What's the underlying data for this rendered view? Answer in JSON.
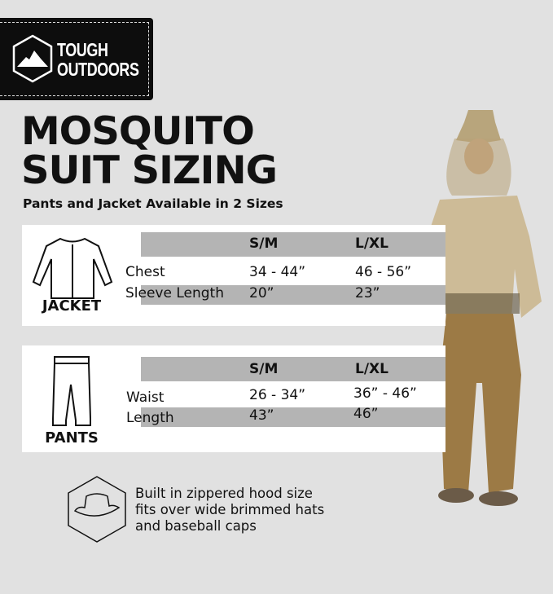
{
  "brand": {
    "logo_line1": "TOUGH",
    "logo_line2": "OUTDOORS"
  },
  "title_line1": "MOSQUITO",
  "title_line2": "SUIT SIZING",
  "subtitle": "Pants and Jacket Available in 2 Sizes",
  "jacket": {
    "label": "JACKET",
    "headers": [
      "S/M",
      "L/XL"
    ],
    "rows": [
      {
        "name": "Chest",
        "sm": "34 - 44”",
        "lxl": "46 - 56”"
      },
      {
        "name": "Sleeve Length",
        "sm": "20”",
        "lxl": "23”"
      }
    ]
  },
  "pants": {
    "label": "PANTS",
    "headers": [
      "S/M",
      "L/XL"
    ],
    "rows": [
      {
        "name": "Waist",
        "sm": "26 - 34”",
        "lxl": "36” - 46”"
      },
      {
        "name": "Length",
        "sm": "43”",
        "lxl": "46”"
      }
    ]
  },
  "feature": {
    "line1": "Built in zippered hood size",
    "line2": "fits over wide brimmed hats",
    "line3": "and baseball caps"
  },
  "colors": {
    "background": "#e1e1e1",
    "band": "#b4b4b4",
    "suit": "#a88a55"
  }
}
